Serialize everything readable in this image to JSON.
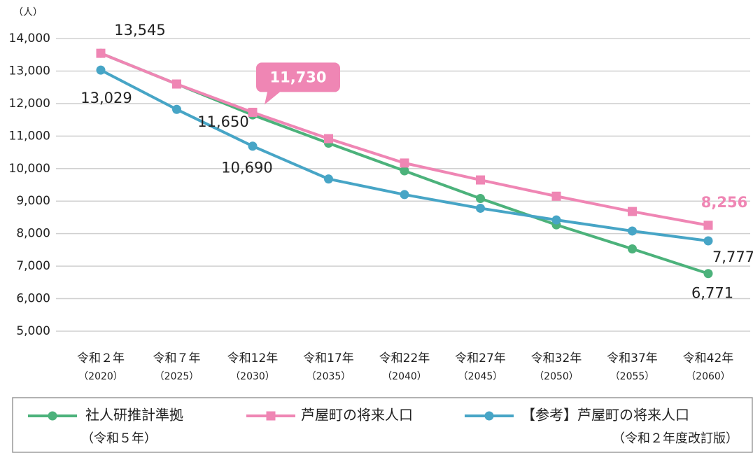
{
  "chart_data": {
    "type": "line",
    "y_unit": "（人）",
    "categories": [
      "令和２年",
      "令和７年",
      "令和12年",
      "令和17年",
      "令和22年",
      "令和27年",
      "令和32年",
      "令和37年",
      "令和42年"
    ],
    "category_years": [
      "（2020）",
      "（2025）",
      "（2030）",
      "（2035）",
      "（2040）",
      "（2045）",
      "（2050）",
      "（2055）",
      "（2060）"
    ],
    "ylim": [
      5000,
      14000
    ],
    "yticks": [
      {
        "value": 5000,
        "label": "5,000"
      },
      {
        "value": 6000,
        "label": "6,000"
      },
      {
        "value": 7000,
        "label": "7,000"
      },
      {
        "value": 8000,
        "label": "8,000"
      },
      {
        "value": 9000,
        "label": "9,000"
      },
      {
        "value": 10000,
        "label": "10,000"
      },
      {
        "value": 11000,
        "label": "11,000"
      },
      {
        "value": 12000,
        "label": "12,000"
      },
      {
        "value": 13000,
        "label": "13,000"
      },
      {
        "value": 14000,
        "label": "14,000"
      }
    ],
    "grid": true,
    "legend": "bottom",
    "series": [
      {
        "name": "社人研推計準拠",
        "name_sub": "（令和５年）",
        "color": "#4cb27b",
        "marker": "circle",
        "values": [
          13545,
          12600,
          11650,
          10780,
          9930,
          9080,
          8270,
          7530,
          6771
        ],
        "value_labels": [
          null,
          null,
          "11,650",
          null,
          null,
          null,
          null,
          null,
          "6,771"
        ]
      },
      {
        "name": "芦屋町の将来人口",
        "color": "#ef86b4",
        "marker": "square",
        "values": [
          13545,
          12600,
          11730,
          10920,
          10170,
          9650,
          9150,
          8680,
          8256
        ],
        "value_labels": [
          "13,545",
          null,
          "11,730",
          null,
          null,
          null,
          null,
          null,
          "8,256"
        ]
      },
      {
        "name": "【参考】芦屋町の将来人口",
        "name_sub": "（令和２年度改訂版）",
        "color": "#47a5c6",
        "marker": "circle",
        "values": [
          13029,
          11820,
          10690,
          9680,
          9200,
          8780,
          8420,
          8080,
          7777
        ],
        "value_labels": [
          "13,029",
          null,
          "10,690",
          null,
          null,
          null,
          null,
          null,
          "7,777"
        ]
      }
    ]
  }
}
